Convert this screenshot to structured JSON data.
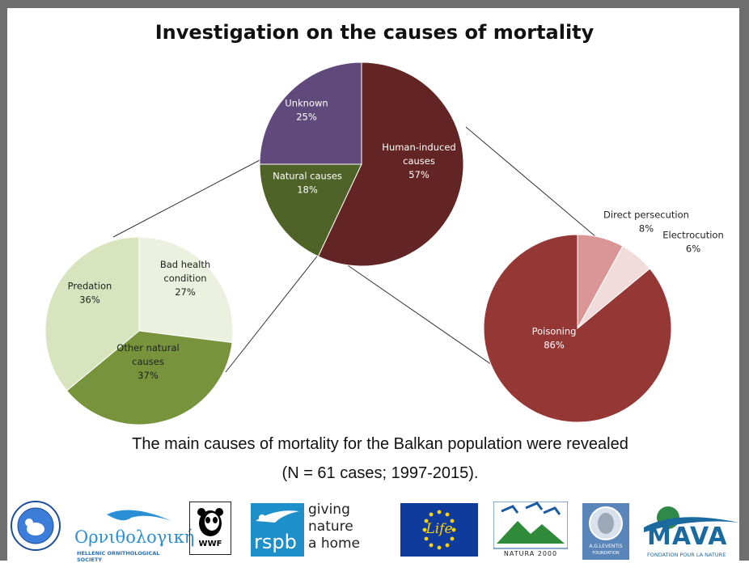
{
  "title": "Investigation on the causes of mortality",
  "caption_line1": "The main causes of mortality for the Balkan population were revealed",
  "caption_line2": "(N = 61 cases; 1997-2015).",
  "chart_data": [
    {
      "type": "pie",
      "slices": [
        {
          "label": "Human-induced causes",
          "value": 57,
          "value_label": "57%",
          "color": "#632523"
        },
        {
          "label": "Natural causes",
          "value": 18,
          "value_label": "18%",
          "color": "#4f6228"
        },
        {
          "label": "Unknown",
          "value": 25,
          "value_label": "25%",
          "color": "#604a7b"
        }
      ]
    },
    {
      "type": "pie",
      "slices": [
        {
          "label": "Bad health condition",
          "value": 27,
          "value_label": "27%",
          "color": "#ebf1de"
        },
        {
          "label": "Other natural causes",
          "value": 37,
          "value_label": "37%",
          "color": "#77933c"
        },
        {
          "label": "Predation",
          "value": 36,
          "value_label": "36%",
          "color": "#d7e4bd"
        }
      ]
    },
    {
      "type": "pie",
      "slices": [
        {
          "label": "Direct persecution",
          "value": 8,
          "value_label": "8%",
          "color": "#d99694"
        },
        {
          "label": "Electrocution",
          "value": 6,
          "value_label": "6%",
          "color": "#f2dcdb"
        },
        {
          "label": "Poisoning",
          "value": 86,
          "value_label": "86%",
          "color": "#953735"
        }
      ]
    }
  ],
  "logos": {
    "ornithologiki": "Ορνιθολογική",
    "hos": "HELLENIC ORNITHOLOGICAL SOCIETY",
    "wwf": "WWF",
    "rspb": "rspb",
    "rspb_tag1": "giving",
    "rspb_tag2": "nature",
    "rspb_tag3": "a home",
    "life": "Life",
    "natura": "NATURA 2000",
    "leventis": "A.G.LEVENTIS",
    "leventis_sub": "FOUNDATION",
    "mava": "MAVA",
    "mava_sub": "FONDATION POUR LA NATURE"
  }
}
